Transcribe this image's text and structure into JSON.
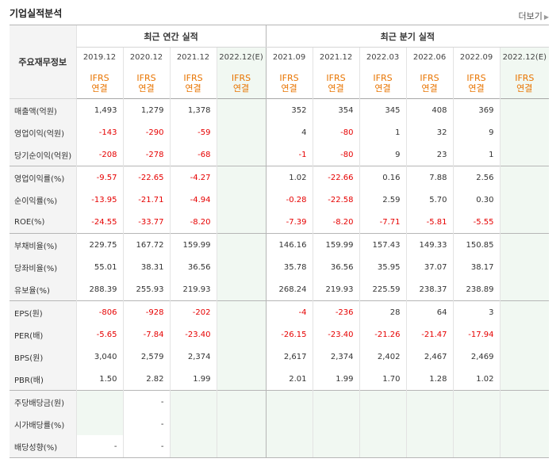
{
  "header": {
    "title": "기업실적분석",
    "more_label": "더보기"
  },
  "table": {
    "row_header_label": "주요재무정보",
    "annual_group_label": "최근 연간 실적",
    "quarter_group_label": "최근 분기 실적",
    "annual_periods": [
      "2019.12",
      "2020.12",
      "2021.12",
      "2022.12(E)"
    ],
    "quarter_periods": [
      "2021.09",
      "2021.12",
      "2022.03",
      "2022.06",
      "2022.09",
      "2022.12(E)"
    ],
    "ifrs_line1": "IFRS",
    "ifrs_line2": "연결",
    "rows": [
      {
        "label": "매출액(억원)",
        "values": [
          "1,493",
          "1,279",
          "1,378",
          "",
          "352",
          "354",
          "345",
          "408",
          "369",
          ""
        ]
      },
      {
        "label": "영업이익(억원)",
        "values": [
          "-143",
          "-290",
          "-59",
          "",
          "4",
          "-80",
          "1",
          "32",
          "9",
          ""
        ]
      },
      {
        "label": "당기순이익(억원)",
        "values": [
          "-208",
          "-278",
          "-68",
          "",
          "-1",
          "-80",
          "9",
          "23",
          "1",
          ""
        ]
      },
      {
        "label": "영업이익률(%)",
        "values": [
          "-9.57",
          "-22.65",
          "-4.27",
          "",
          "1.02",
          "-22.66",
          "0.16",
          "7.88",
          "2.56",
          ""
        ]
      },
      {
        "label": "순이익률(%)",
        "values": [
          "-13.95",
          "-21.71",
          "-4.94",
          "",
          "-0.28",
          "-22.58",
          "2.59",
          "5.70",
          "0.30",
          ""
        ]
      },
      {
        "label": "ROE(%)",
        "values": [
          "-24.55",
          "-33.77",
          "-8.20",
          "",
          "-7.39",
          "-8.20",
          "-7.71",
          "-5.81",
          "-5.55",
          ""
        ]
      },
      {
        "label": "부채비율(%)",
        "values": [
          "229.75",
          "167.72",
          "159.99",
          "",
          "146.16",
          "159.99",
          "157.43",
          "149.33",
          "150.85",
          ""
        ]
      },
      {
        "label": "당좌비율(%)",
        "values": [
          "55.01",
          "38.31",
          "36.56",
          "",
          "35.78",
          "36.56",
          "35.95",
          "37.07",
          "38.17",
          ""
        ]
      },
      {
        "label": "유보율(%)",
        "values": [
          "288.39",
          "255.93",
          "219.93",
          "",
          "268.24",
          "219.93",
          "225.59",
          "238.37",
          "238.89",
          ""
        ]
      },
      {
        "label": "EPS(원)",
        "values": [
          "-806",
          "-928",
          "-202",
          "",
          "-4",
          "-236",
          "28",
          "64",
          "3",
          ""
        ]
      },
      {
        "label": "PER(배)",
        "values": [
          "-5.65",
          "-7.84",
          "-23.40",
          "",
          "-26.15",
          "-23.40",
          "-21.26",
          "-21.47",
          "-17.94",
          ""
        ]
      },
      {
        "label": "BPS(원)",
        "values": [
          "3,040",
          "2,579",
          "2,374",
          "",
          "2,617",
          "2,374",
          "2,402",
          "2,467",
          "2,469",
          ""
        ]
      },
      {
        "label": "PBR(배)",
        "values": [
          "1.50",
          "2.82",
          "1.99",
          "",
          "2.01",
          "1.99",
          "1.70",
          "1.28",
          "1.02",
          ""
        ]
      },
      {
        "label": "주당배당금(원)",
        "values": [
          "",
          "-",
          "",
          "",
          "",
          "",
          "",
          "",
          "",
          ""
        ]
      },
      {
        "label": "시가배당률(%)",
        "values": [
          "",
          "-",
          "",
          "",
          "",
          "",
          "",
          "",
          "",
          ""
        ]
      },
      {
        "label": "배당성향(%)",
        "values": [
          "-",
          "-",
          "",
          "",
          "",
          "",
          "",
          "",
          "",
          ""
        ]
      }
    ]
  },
  "colors": {
    "negative": "#e60000",
    "ifrs": "#e87400",
    "estimate_bg": "#f1f8f2",
    "estimate_text": "#4a9a3a"
  }
}
